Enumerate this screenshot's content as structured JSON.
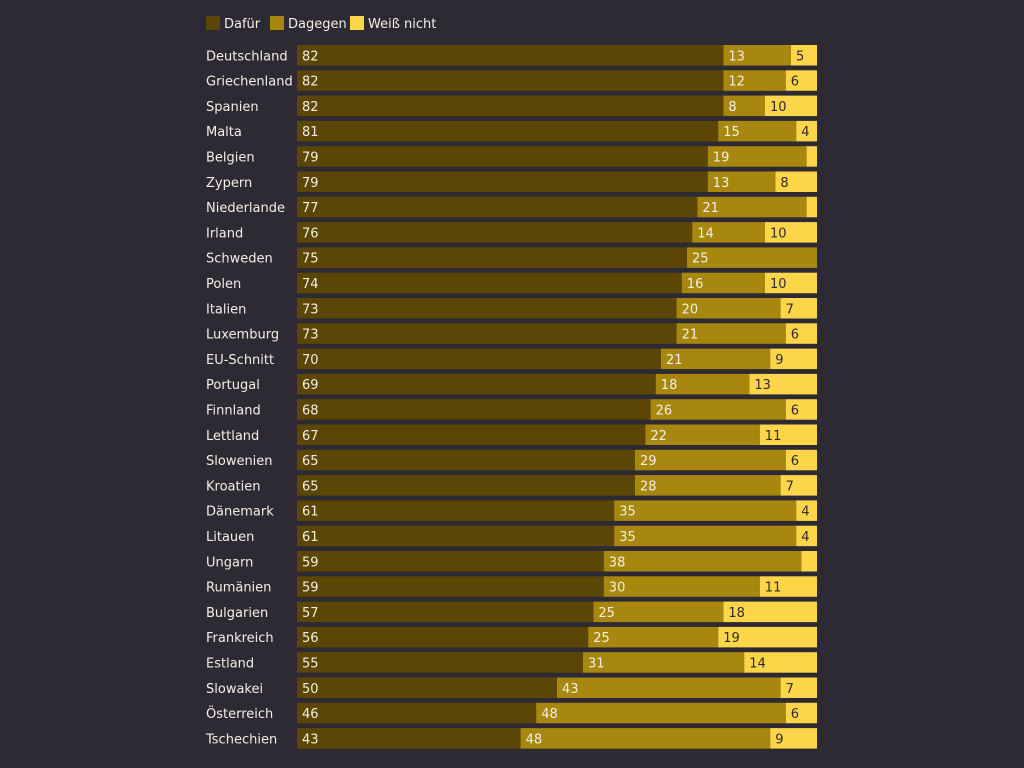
{
  "chart_data": {
    "type": "bar",
    "orientation": "horizontal",
    "stacked": true,
    "normalized_total": 100,
    "legend_position": "top-left",
    "grid": false,
    "categories": [
      "Deutschland",
      "Griechenland",
      "Spanien",
      "Malta",
      "Belgien",
      "Zypern",
      "Niederlande",
      "Irland",
      "Schweden",
      "Polen",
      "Italien",
      "Luxemburg",
      "EU-Schnitt",
      "Portugal",
      "Finnland",
      "Lettland",
      "Slowenien",
      "Kroatien",
      "Dänemark",
      "Litauen",
      "Ungarn",
      "Rumänien",
      "Bulgarien",
      "Frankreich",
      "Estland",
      "Slowakei",
      "Österreich",
      "Tschechien"
    ],
    "series": [
      {
        "name": "Dafür",
        "color": "#5c4606",
        "values": [
          82,
          82,
          82,
          81,
          79,
          79,
          77,
          76,
          75,
          74,
          73,
          73,
          70,
          69,
          68,
          67,
          65,
          65,
          61,
          61,
          59,
          59,
          57,
          56,
          55,
          50,
          46,
          43
        ]
      },
      {
        "name": "Dagegen",
        "color": "#a8870e",
        "values": [
          13,
          12,
          8,
          15,
          19,
          13,
          21,
          14,
          25,
          16,
          20,
          21,
          21,
          18,
          26,
          22,
          29,
          28,
          35,
          35,
          38,
          30,
          25,
          25,
          31,
          43,
          48,
          48
        ]
      },
      {
        "name": "Weiß nicht",
        "color": "#fcd548",
        "values": [
          5,
          6,
          10,
          4,
          2,
          8,
          2,
          10,
          0,
          10,
          7,
          6,
          9,
          13,
          6,
          11,
          6,
          7,
          4,
          4,
          3,
          11,
          18,
          19,
          14,
          7,
          6,
          9
        ]
      }
    ],
    "series_labels": [
      [
        "82",
        "82",
        "82",
        "81",
        "79",
        "79",
        "77",
        "76",
        "75",
        "74",
        "73",
        "73",
        "70",
        "69",
        "68",
        "67",
        "65",
        "65",
        "61",
        "61",
        "59",
        "59",
        "57",
        "56",
        "55",
        "50",
        "46",
        "43"
      ],
      [
        "13",
        "12",
        "8",
        "15",
        "19",
        "13",
        "21",
        "14",
        "25",
        "16",
        "20",
        "21",
        "21",
        "18",
        "26",
        "22",
        "29",
        "28",
        "35",
        "35",
        "38",
        "30",
        "25",
        "25",
        "31",
        "43",
        "48",
        "48"
      ],
      [
        "5",
        "6",
        "10",
        "4",
        "",
        "8",
        "",
        "10",
        "",
        "10",
        "7",
        "6",
        "9",
        "13",
        "6",
        "11",
        "6",
        "7",
        "4",
        "4",
        "",
        "11",
        "18",
        "19",
        "14",
        "7",
        "6",
        "9"
      ]
    ]
  }
}
